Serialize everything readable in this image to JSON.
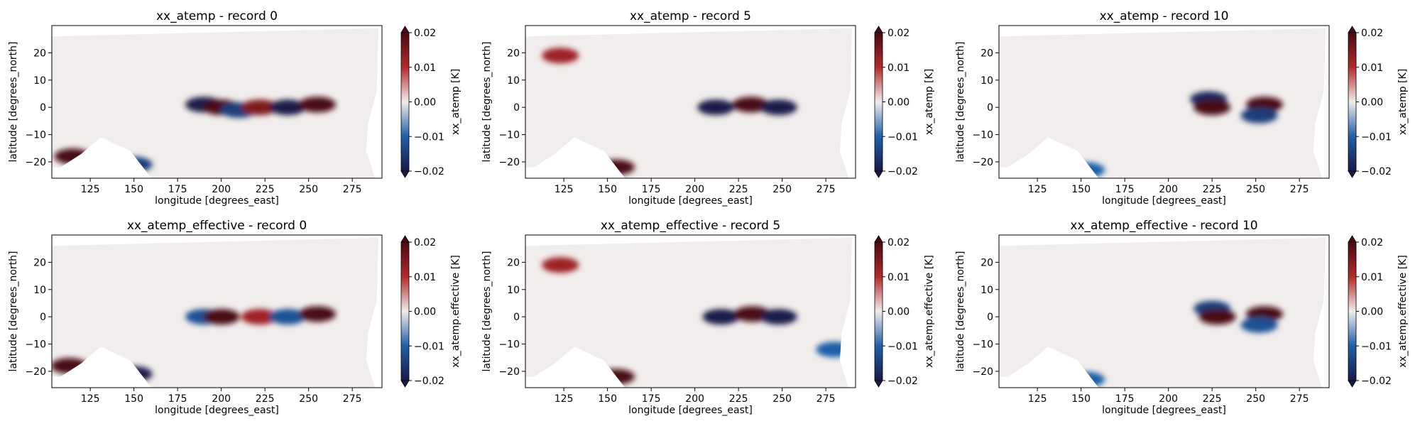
{
  "figure": {
    "layout": "2x3 grid of map panels with colorbars",
    "colormap": "diverging blue-white-red (balance)",
    "colors": {
      "neg_max": "#1a1a4a",
      "neg": "#1f5fa8",
      "zero": "#f1edec",
      "pos": "#b22a2a",
      "pos_max": "#4a0a14",
      "land": "#ffffff"
    }
  },
  "chart_data": [
    {
      "type": "heatmap",
      "title": "xx_atemp - record 0",
      "xlabel": "longitude [degrees_east]",
      "ylabel": "latitude [degrees_north]",
      "colorbar_label": "xx_atemp [K]",
      "xlim": [
        103,
        292
      ],
      "ylim": [
        -26,
        30
      ],
      "xticks": [
        "125",
        "150",
        "175",
        "200",
        "225",
        "250",
        "275"
      ],
      "yticks": [
        "20",
        "10",
        "0",
        "−10",
        "−20"
      ],
      "clim": [
        -0.02,
        0.02
      ],
      "cbar_ticks": [
        "0.02",
        "0.01",
        "0.00",
        "−0.01",
        "−0.02"
      ],
      "features": [
        {
          "lon": 190,
          "lat": 1,
          "value": -0.02
        },
        {
          "lon": 200,
          "lat": 0,
          "value": 0.02
        },
        {
          "lon": 210,
          "lat": -1,
          "value": -0.015
        },
        {
          "lon": 222,
          "lat": 0,
          "value": 0.015
        },
        {
          "lon": 238,
          "lat": 0,
          "value": -0.02
        },
        {
          "lon": 255,
          "lat": 1,
          "value": 0.02
        },
        {
          "lon": 115,
          "lat": -18,
          "value": 0.02
        },
        {
          "lon": 150,
          "lat": -21,
          "value": -0.015
        }
      ]
    },
    {
      "type": "heatmap",
      "title": "xx_atemp - record 5",
      "xlabel": "longitude [degrees_east]",
      "ylabel": "latitude [degrees_north]",
      "colorbar_label": "xx_atemp [K]",
      "xlim": [
        103,
        292
      ],
      "ylim": [
        -26,
        30
      ],
      "xticks": [
        "125",
        "150",
        "175",
        "200",
        "225",
        "250",
        "275"
      ],
      "yticks": [
        "20",
        "10",
        "0",
        "−10",
        "−20"
      ],
      "clim": [
        -0.02,
        0.02
      ],
      "cbar_ticks": [
        "0.02",
        "0.01",
        "0.00",
        "−0.01",
        "−0.02"
      ],
      "features": [
        {
          "lon": 212,
          "lat": 0,
          "value": -0.02
        },
        {
          "lon": 232,
          "lat": 1,
          "value": 0.02
        },
        {
          "lon": 248,
          "lat": 0,
          "value": -0.02
        },
        {
          "lon": 123,
          "lat": 19,
          "value": 0.012
        },
        {
          "lon": 155,
          "lat": -22,
          "value": 0.02
        }
      ]
    },
    {
      "type": "heatmap",
      "title": "xx_atemp - record 10",
      "xlabel": "longitude [degrees_east]",
      "ylabel": "latitude [degrees_north]",
      "colorbar_label": "xx_atemp [K]",
      "xlim": [
        103,
        292
      ],
      "ylim": [
        -26,
        30
      ],
      "xticks": [
        "125",
        "150",
        "175",
        "200",
        "225",
        "250",
        "275"
      ],
      "yticks": [
        "20",
        "10",
        "0",
        "−10",
        "−20"
      ],
      "clim": [
        -0.02,
        0.02
      ],
      "cbar_ticks": [
        "0.02",
        "0.01",
        "0.00",
        "−0.01",
        "−0.02"
      ],
      "features": [
        {
          "lon": 223,
          "lat": 3,
          "value": -0.018
        },
        {
          "lon": 225,
          "lat": 0,
          "value": 0.02
        },
        {
          "lon": 255,
          "lat": 1,
          "value": 0.02
        },
        {
          "lon": 252,
          "lat": -3,
          "value": -0.015
        },
        {
          "lon": 153,
          "lat": -23,
          "value": -0.01
        }
      ]
    },
    {
      "type": "heatmap",
      "title": "xx_atemp_effective - record 0",
      "xlabel": "longitude [degrees_east]",
      "ylabel": "latitude [degrees_north]",
      "colorbar_label": "xx_atemp.effective [K]",
      "xlim": [
        103,
        292
      ],
      "ylim": [
        -26,
        30
      ],
      "xticks": [
        "125",
        "150",
        "175",
        "200",
        "225",
        "250",
        "275"
      ],
      "yticks": [
        "20",
        "10",
        "0",
        "−10",
        "−20"
      ],
      "clim": [
        -0.02,
        0.02
      ],
      "cbar_ticks": [
        "0.02",
        "0.01",
        "0.00",
        "−0.01",
        "−0.02"
      ],
      "features": [
        {
          "lon": 190,
          "lat": 0,
          "value": -0.012
        },
        {
          "lon": 200,
          "lat": 0,
          "value": 0.02
        },
        {
          "lon": 222,
          "lat": 0,
          "value": 0.012
        },
        {
          "lon": 238,
          "lat": 0,
          "value": -0.012
        },
        {
          "lon": 255,
          "lat": 1,
          "value": 0.02
        },
        {
          "lon": 113,
          "lat": -18,
          "value": 0.02
        },
        {
          "lon": 150,
          "lat": -21,
          "value": -0.02
        }
      ]
    },
    {
      "type": "heatmap",
      "title": "xx_atemp_effective - record 5",
      "xlabel": "longitude [degrees_east]",
      "ylabel": "latitude [degrees_north]",
      "colorbar_label": "xx_atemp.effective [K]",
      "xlim": [
        103,
        292
      ],
      "ylim": [
        -26,
        30
      ],
      "xticks": [
        "125",
        "150",
        "175",
        "200",
        "225",
        "250",
        "275"
      ],
      "yticks": [
        "20",
        "10",
        "0",
        "−10",
        "−20"
      ],
      "clim": [
        -0.02,
        0.02
      ],
      "cbar_ticks": [
        "0.02",
        "0.01",
        "0.00",
        "−0.01",
        "−0.02"
      ],
      "features": [
        {
          "lon": 215,
          "lat": 0,
          "value": -0.02
        },
        {
          "lon": 233,
          "lat": 1,
          "value": 0.02
        },
        {
          "lon": 248,
          "lat": 0,
          "value": -0.02
        },
        {
          "lon": 123,
          "lat": 19,
          "value": 0.012
        },
        {
          "lon": 155,
          "lat": -22,
          "value": 0.02
        },
        {
          "lon": 280,
          "lat": -12,
          "value": -0.01
        }
      ]
    },
    {
      "type": "heatmap",
      "title": "xx_atemp_effective - record 10",
      "xlabel": "longitude [degrees_east]",
      "ylabel": "latitude [degrees_north]",
      "colorbar_label": "xx_atemp.effective [K]",
      "xlim": [
        103,
        292
      ],
      "ylim": [
        -26,
        30
      ],
      "xticks": [
        "125",
        "150",
        "175",
        "200",
        "225",
        "250",
        "275"
      ],
      "yticks": [
        "20",
        "10",
        "0",
        "−10",
        "−20"
      ],
      "clim": [
        -0.02,
        0.02
      ],
      "cbar_ticks": [
        "0.02",
        "0.01",
        "0.00",
        "−0.01",
        "−0.02"
      ],
      "features": [
        {
          "lon": 225,
          "lat": 3,
          "value": -0.015
        },
        {
          "lon": 228,
          "lat": 0,
          "value": 0.02
        },
        {
          "lon": 255,
          "lat": 1,
          "value": 0.02
        },
        {
          "lon": 252,
          "lat": -3,
          "value": -0.012
        },
        {
          "lon": 153,
          "lat": -23,
          "value": -0.01
        }
      ]
    }
  ]
}
